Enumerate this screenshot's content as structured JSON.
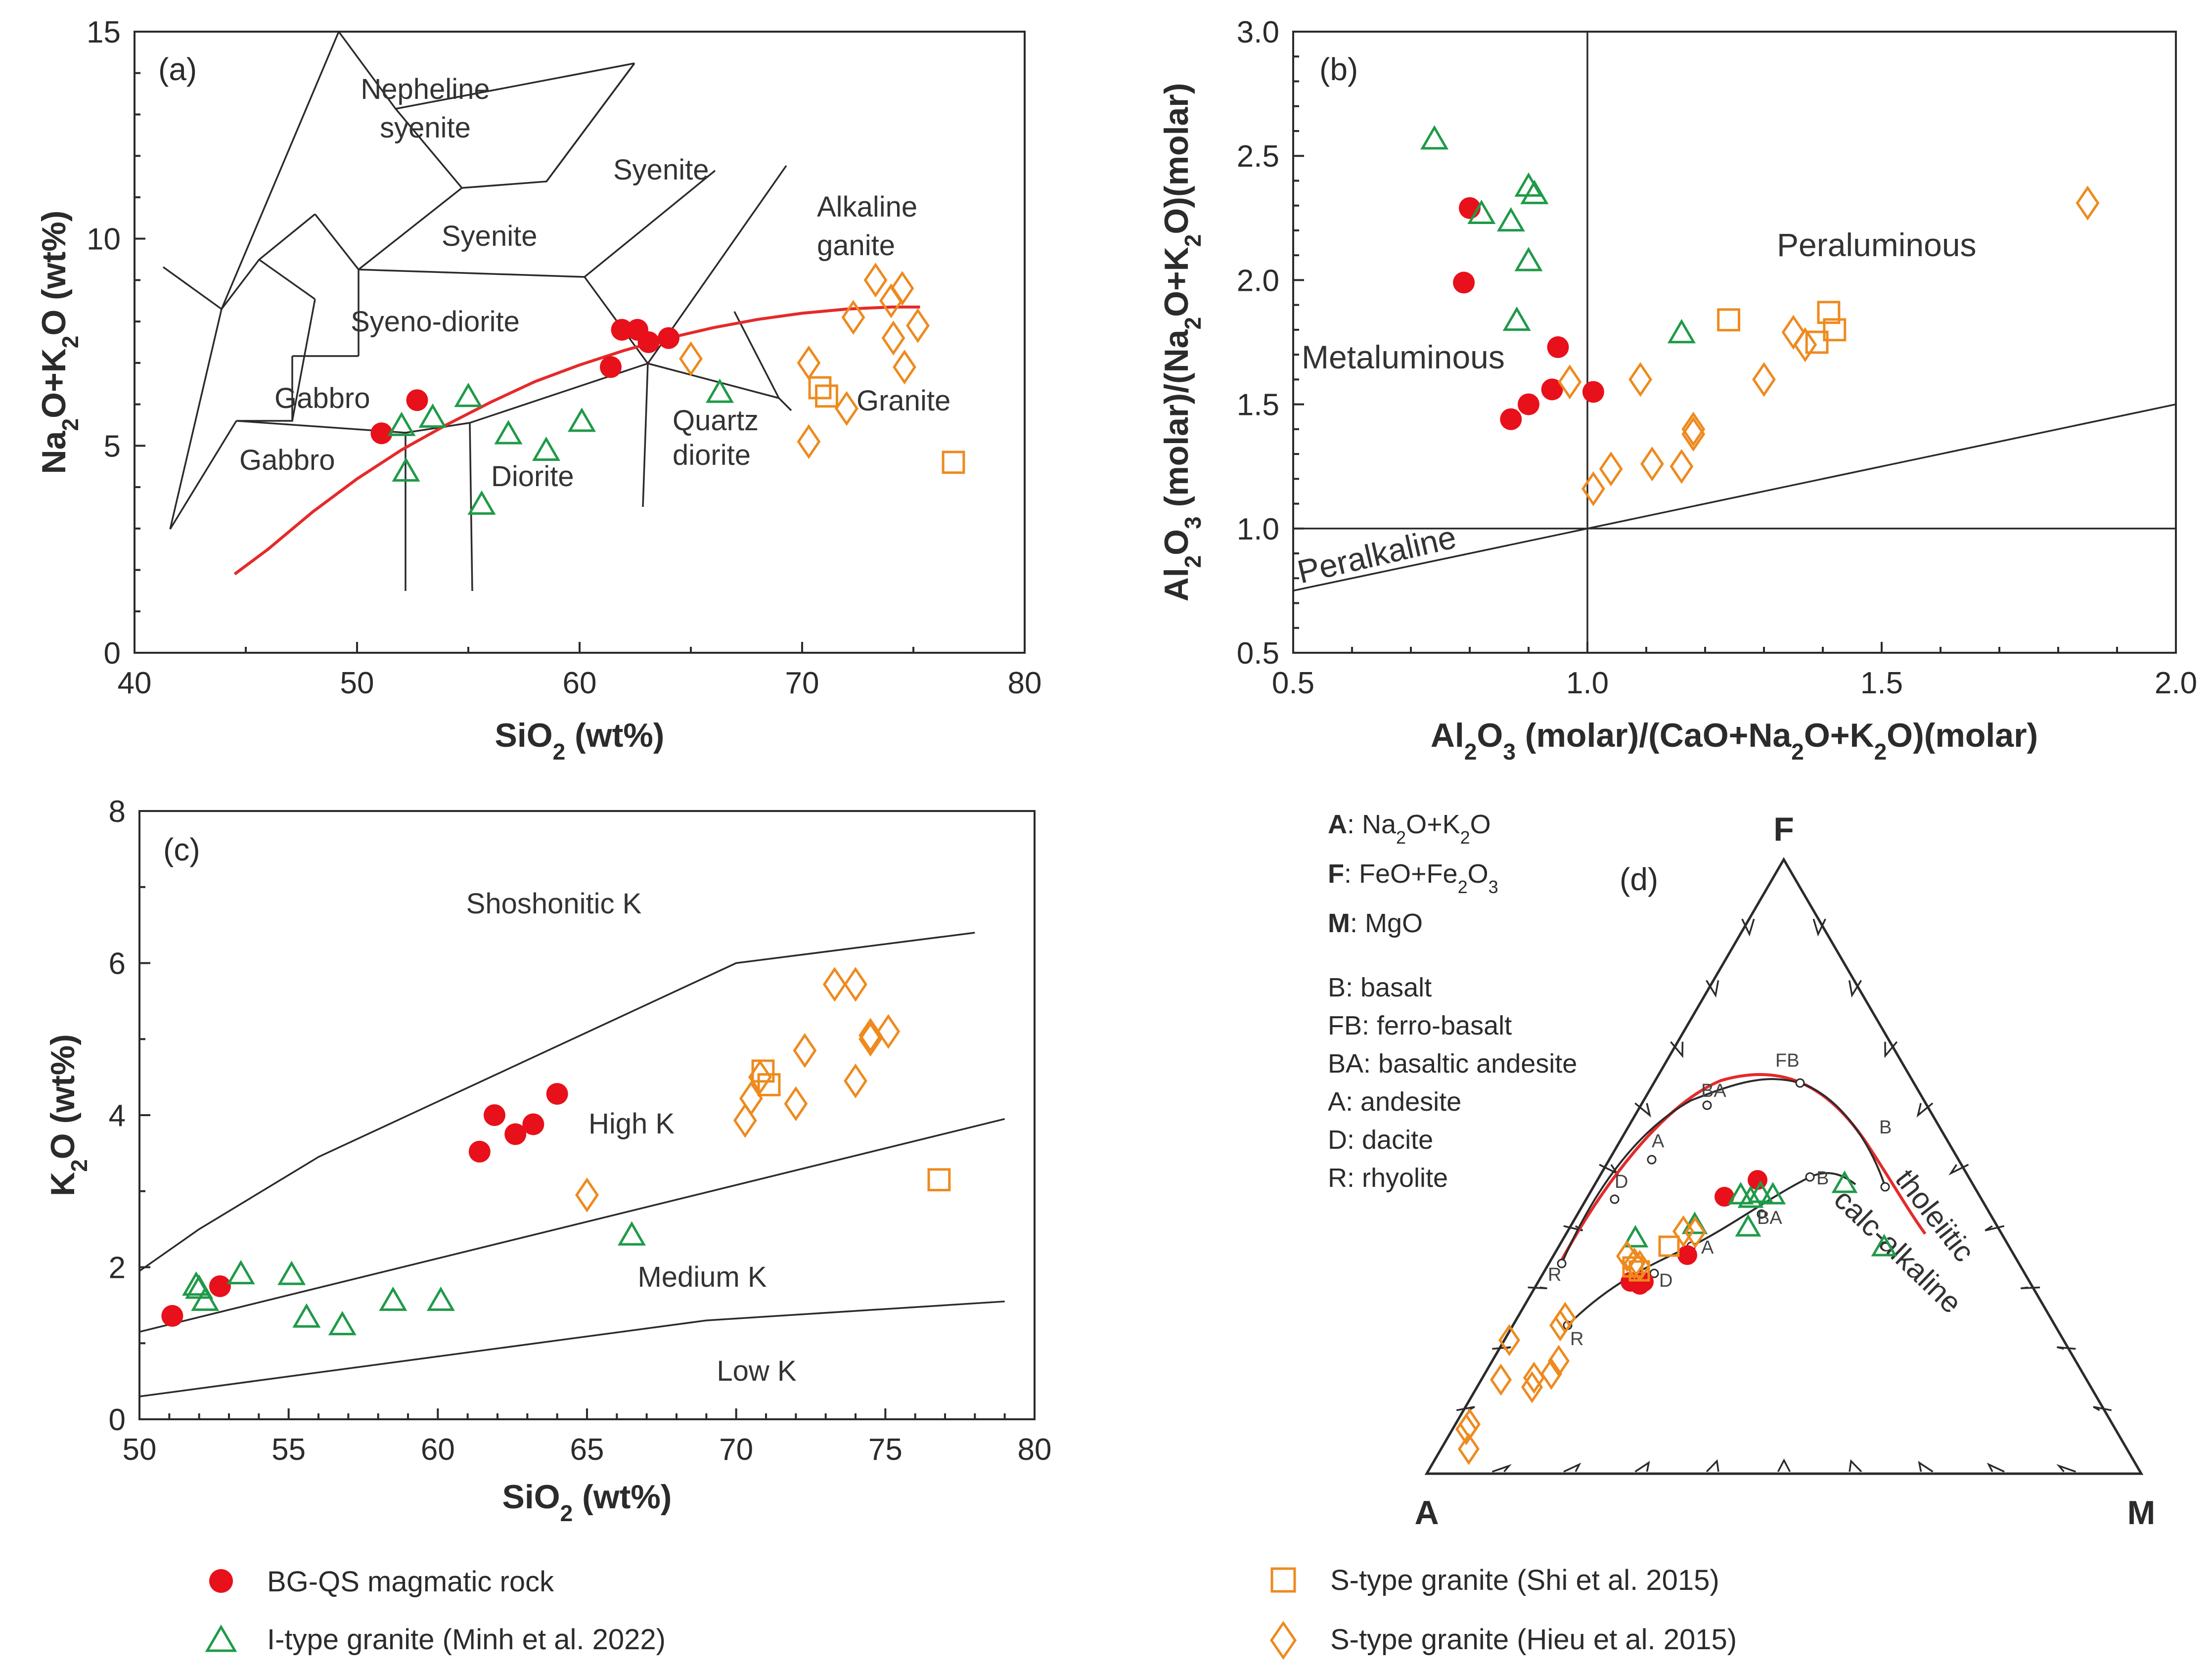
{
  "colors": {
    "bgqs": "#e8101a",
    "itype": "#1f9a48",
    "stype": "#ee8a1e",
    "boundary_red": "#e52a2a",
    "line": "#2b2b2b"
  },
  "legend": {
    "bgqs": "BG-QS magmatic rock",
    "itype": "I-type granite (Minh et al. 2022)",
    "stype_shi": "S-type granite (Shi et al. 2015)",
    "stype_hieu": "S-type granite (Hieu et al. 2015)"
  },
  "chart_data": [
    {
      "panel": "(a)",
      "type": "scatter",
      "xlabel": "SiO2 (wt%)",
      "ylabel": "Na2O+K2O (wt%)",
      "xlim": [
        40,
        80
      ],
      "ylim": [
        0,
        15
      ],
      "xticks": [
        "40",
        "50",
        "60",
        "70",
        "80"
      ],
      "yticks": [
        "0",
        "5",
        "10",
        "15"
      ],
      "fields": [
        "Nepheline",
        "syenite",
        "Syenite",
        "Syenite",
        "Syeno-diorite",
        "Gabbro",
        "Gabbro",
        "Diorite",
        "Quartz",
        "diorite",
        "Alkaline",
        "ganite",
        "Granite"
      ],
      "boundary_line": {
        "x": [
          44.5,
          46,
          48,
          50,
          52,
          54,
          56,
          58,
          60,
          62,
          64,
          66,
          68,
          70,
          72,
          74,
          75.3
        ],
        "y": [
          1.9,
          2.5,
          3.4,
          4.2,
          4.9,
          5.5,
          6.05,
          6.55,
          6.95,
          7.3,
          7.6,
          7.85,
          8.05,
          8.2,
          8.3,
          8.35,
          8.35
        ]
      },
      "series": [
        {
          "name": "BG-QS magmatic rock",
          "marker": "circle",
          "points": [
            [
              51.1,
              5.3
            ],
            [
              52.7,
              6.1
            ],
            [
              61.4,
              6.9
            ],
            [
              61.9,
              7.8
            ],
            [
              62.6,
              7.8
            ],
            [
              63.1,
              7.5
            ],
            [
              64.0,
              7.6
            ]
          ]
        },
        {
          "name": "I-type granite (Minh et al. 2022)",
          "marker": "triangle",
          "points": [
            [
              52.0,
              5.5
            ],
            [
              52.2,
              4.4
            ],
            [
              53.4,
              5.7
            ],
            [
              55.0,
              6.2
            ],
            [
              55.6,
              3.6
            ],
            [
              56.8,
              5.3
            ],
            [
              58.5,
              4.9
            ],
            [
              60.1,
              5.6
            ],
            [
              66.3,
              6.3
            ]
          ]
        },
        {
          "name": "S-type granite (Shi et al. 2015)",
          "marker": "square",
          "points": [
            [
              70.8,
              6.4
            ],
            [
              71.1,
              6.2
            ],
            [
              76.8,
              4.6
            ]
          ]
        },
        {
          "name": "S-type granite (Hieu et al. 2015)",
          "marker": "diamond",
          "points": [
            [
              65.0,
              7.1
            ],
            [
              70.3,
              7.0
            ],
            [
              70.3,
              5.1
            ],
            [
              72.0,
              5.9
            ],
            [
              72.3,
              8.1
            ],
            [
              73.3,
              9.0
            ],
            [
              74.0,
              8.5
            ],
            [
              74.1,
              7.6
            ],
            [
              74.5,
              8.8
            ],
            [
              74.6,
              6.9
            ],
            [
              75.2,
              7.9
            ]
          ]
        }
      ]
    },
    {
      "panel": "(b)",
      "type": "scatter",
      "xlabel": "Al2O3 (molar)/(CaO+Na2O+K2O)(molar)",
      "ylabel": "Al2O3 (molar)/(Na2O+K2O)(molar)",
      "xlim": [
        0.5,
        2.0
      ],
      "ylim": [
        0.5,
        3.0
      ],
      "xticks": [
        "0.5",
        "1.0",
        "1.5",
        "2.0"
      ],
      "yticks": [
        "0.5",
        "1.0",
        "1.5",
        "2.0",
        "2.5",
        "3.0"
      ],
      "fields": [
        "Metaluminous",
        "Peraluminous",
        "Peralkaline"
      ],
      "series": [
        {
          "name": "BG-QS magmatic rock",
          "marker": "circle",
          "points": [
            [
              0.8,
              2.29
            ],
            [
              0.79,
              1.99
            ],
            [
              0.95,
              1.73
            ],
            [
              0.87,
              1.44
            ],
            [
              0.9,
              1.5
            ],
            [
              0.94,
              1.56
            ],
            [
              1.01,
              1.55
            ]
          ]
        },
        {
          "name": "I-type granite (Minh et al. 2022)",
          "marker": "triangle",
          "points": [
            [
              0.74,
              2.57
            ],
            [
              0.82,
              2.27
            ],
            [
              0.87,
              2.24
            ],
            [
              0.9,
              2.38
            ],
            [
              0.91,
              2.35
            ],
            [
              0.9,
              2.08
            ],
            [
              0.88,
              1.84
            ],
            [
              1.16,
              1.79
            ]
          ]
        },
        {
          "name": "S-type granite (Shi et al. 2015)",
          "marker": "square",
          "points": [
            [
              1.24,
              1.84
            ],
            [
              1.39,
              1.75
            ],
            [
              1.41,
              1.87
            ],
            [
              1.42,
              1.8
            ]
          ]
        },
        {
          "name": "S-type granite (Hieu et al. 2015)",
          "marker": "diamond",
          "points": [
            [
              1.01,
              1.16
            ],
            [
              1.04,
              1.24
            ],
            [
              0.97,
              1.59
            ],
            [
              1.09,
              1.6
            ],
            [
              1.11,
              1.26
            ],
            [
              1.16,
              1.25
            ],
            [
              1.18,
              1.4
            ],
            [
              1.18,
              1.38
            ],
            [
              1.3,
              1.6
            ],
            [
              1.35,
              1.79
            ],
            [
              1.37,
              1.74
            ],
            [
              1.85,
              2.31
            ]
          ]
        }
      ]
    },
    {
      "panel": "(c)",
      "type": "scatter",
      "xlabel": "SiO2 (wt%)",
      "ylabel": "K2O (wt%)",
      "xlim": [
        50,
        80
      ],
      "ylim": [
        0,
        8
      ],
      "xticks": [
        "50",
        "55",
        "60",
        "65",
        "70",
        "75",
        "80"
      ],
      "yticks": [
        "0",
        "2",
        "4",
        "6",
        "8"
      ],
      "fields": [
        "Shoshonitic K",
        "High K",
        "Medium K",
        "Low K"
      ],
      "boundaries": [
        {
          "x": [
            50,
            52,
            56,
            70,
            78
          ],
          "y": [
            1.95,
            2.5,
            3.45,
            6.0,
            6.4
          ]
        },
        {
          "x": [
            50,
            79
          ],
          "y": [
            1.15,
            3.95
          ]
        },
        {
          "x": [
            50,
            69,
            79
          ],
          "y": [
            0.3,
            1.3,
            1.55
          ]
        }
      ],
      "series": [
        {
          "name": "BG-QS magmatic rock",
          "marker": "circle",
          "points": [
            [
              51.1,
              1.36
            ],
            [
              52.7,
              1.75
            ],
            [
              61.4,
              3.52
            ],
            [
              61.9,
              4.0
            ],
            [
              62.6,
              3.75
            ],
            [
              63.2,
              3.88
            ],
            [
              64.0,
              4.28
            ]
          ]
        },
        {
          "name": "I-type granite (Minh et al. 2022)",
          "marker": "triangle",
          "points": [
            [
              51.9,
              1.77
            ],
            [
              52.0,
              1.73
            ],
            [
              52.2,
              1.57
            ],
            [
              53.4,
              1.92
            ],
            [
              55.1,
              1.91
            ],
            [
              55.6,
              1.35
            ],
            [
              56.8,
              1.25
            ],
            [
              58.5,
              1.57
            ],
            [
              60.1,
              1.57
            ],
            [
              66.5,
              2.43
            ]
          ]
        },
        {
          "name": "S-type granite (Shi et al. 2015)",
          "marker": "square",
          "points": [
            [
              70.9,
              4.58
            ],
            [
              71.1,
              4.4
            ],
            [
              76.8,
              3.15
            ]
          ]
        },
        {
          "name": "S-type granite (Hieu et al. 2015)",
          "marker": "diamond",
          "points": [
            [
              65.0,
              2.95
            ],
            [
              70.3,
              3.93
            ],
            [
              70.5,
              4.22
            ],
            [
              70.8,
              4.5
            ],
            [
              72.0,
              4.15
            ],
            [
              72.3,
              4.85
            ],
            [
              73.3,
              5.72
            ],
            [
              74.0,
              5.72
            ],
            [
              74.0,
              4.45
            ],
            [
              74.5,
              5.0
            ],
            [
              74.5,
              5.05
            ],
            [
              75.1,
              5.1
            ]
          ]
        }
      ]
    },
    {
      "panel": "(d)",
      "type": "scatter",
      "diagram": "AFM ternary",
      "apex_labels": {
        "A": "A",
        "F": "F",
        "M": "M"
      },
      "key": [
        {
          "sym": "A",
          "text": ": Na2O+K2O"
        },
        {
          "sym": "F",
          "text": ": FeO+Fe2O3"
        },
        {
          "sym": "M",
          "text": ": MgO"
        }
      ],
      "abbreviations": [
        "B: basalt",
        "FB: ferro-basalt",
        "BA: basaltic andesite",
        "A: andesite",
        "D: dacite",
        "R: rhyolite"
      ],
      "fields": [
        "tholeiitic",
        "calc-alkaline"
      ],
      "upper_trend": {
        "labels": [
          "R",
          "D",
          "A",
          "BA",
          "FB",
          "B"
        ]
      },
      "lower_trend": {
        "labels": [
          "R",
          "D",
          "A",
          "BA",
          "B"
        ]
      },
      "series": [
        {
          "name": "BG-QS magmatic rock",
          "marker": "circle"
        },
        {
          "name": "I-type granite (Minh et al. 2022)",
          "marker": "triangle"
        },
        {
          "name": "S-type granite (Shi et al. 2015)",
          "marker": "square"
        },
        {
          "name": "S-type granite (Hieu et al. 2015)",
          "marker": "diamond"
        }
      ]
    }
  ]
}
